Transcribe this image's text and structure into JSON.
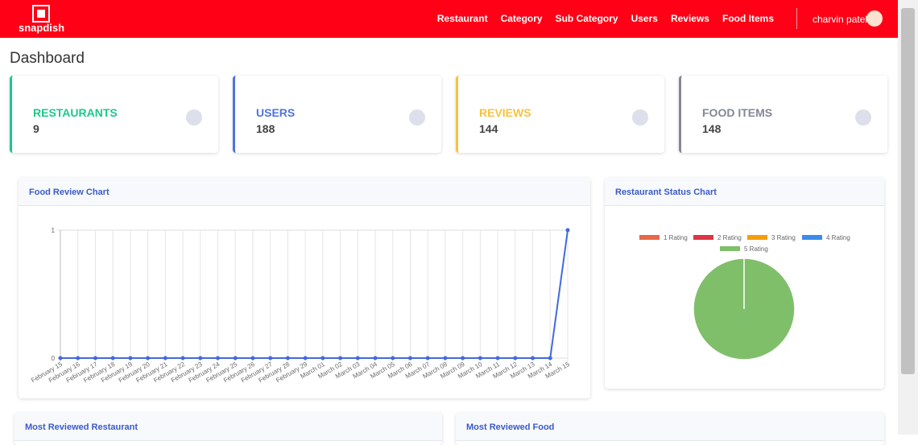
{
  "nav": {
    "brand": "snapdish",
    "links": [
      "Restaurant",
      "Category",
      "Sub Category",
      "Users",
      "Reviews",
      "Food Items"
    ],
    "user": "charvin patel"
  },
  "page_title": "Dashboard",
  "cards": [
    {
      "label": "RESTAURANTS",
      "value": 9,
      "color": "#1cc88a"
    },
    {
      "label": "USERS",
      "value": 188,
      "color": "#4e73df"
    },
    {
      "label": "REVIEWS",
      "value": 144,
      "color": "#f6c23e"
    },
    {
      "label": "FOOD ITEMS",
      "value": 148,
      "color": "#858796"
    }
  ],
  "food_review_chart": {
    "type": "line",
    "title": "Food Review Chart",
    "categories": [
      "February 15",
      "February 16",
      "February 17",
      "February 18",
      "February 19",
      "February 20",
      "February 21",
      "February 22",
      "February 23",
      "February 24",
      "February 25",
      "February 26",
      "February 27",
      "February 28",
      "February 29",
      "March 01",
      "March 02",
      "March 03",
      "March 04",
      "March 05",
      "March 06",
      "March 07",
      "March 08",
      "March 09",
      "March 10",
      "March 11",
      "March 12",
      "March 13",
      "March 14",
      "March 15"
    ],
    "values": [
      0,
      0,
      0,
      0,
      0,
      0,
      0,
      0,
      0,
      0,
      0,
      0,
      0,
      0,
      0,
      0,
      0,
      0,
      0,
      0,
      0,
      0,
      0,
      0,
      0,
      0,
      0,
      0,
      0,
      1
    ],
    "ylim": [
      0,
      1
    ],
    "yticks": [
      0,
      1
    ],
    "color": "#4169e1",
    "grid": true
  },
  "restaurant_status_chart": {
    "type": "pie",
    "title": "Restaurant Status Chart",
    "categories": [
      "1 Rating",
      "2 Rating",
      "3 Rating",
      "4 Rating",
      "5 Rating"
    ],
    "values": [
      0,
      0,
      0,
      0,
      100
    ],
    "colors": [
      "#e8684a",
      "#dc3545",
      "#f59e0b",
      "#3b8beb",
      "#7fbf69"
    ]
  },
  "bottom_cards": [
    "Most Reviewed Restaurant",
    "Most Reviewed Food"
  ]
}
